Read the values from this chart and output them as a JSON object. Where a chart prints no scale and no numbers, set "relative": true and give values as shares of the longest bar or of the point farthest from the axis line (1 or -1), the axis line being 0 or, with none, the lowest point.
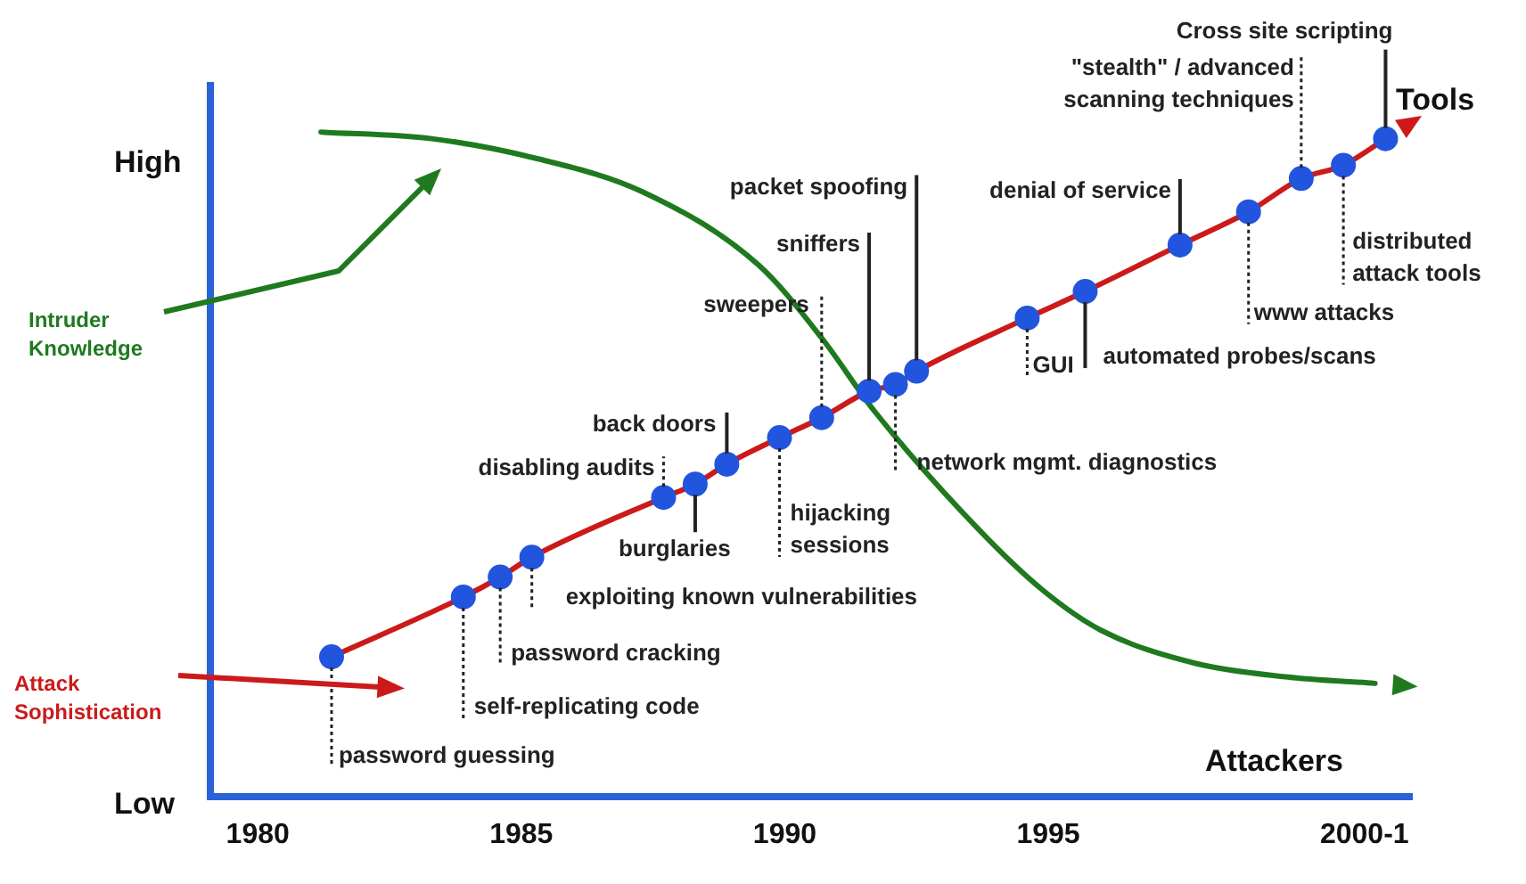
{
  "chart_data": {
    "type": "line",
    "relative": true,
    "legend": false,
    "grid": false,
    "line_style": "solid",
    "xlim": [
      1979.1,
      2001.9
    ],
    "xticks": [
      1980,
      1985,
      1990,
      1995,
      {
        "value": 2001,
        "label": "2000-1"
      }
    ],
    "series": [
      {
        "name": "Attack Sophistication",
        "color": "#cc1a1a",
        "marker": "circle",
        "colors": [
          "#2255dd",
          "#2255dd",
          "#2255dd",
          "#2255dd",
          "#2255dd",
          "#2255dd",
          "#2255dd",
          "#2255dd",
          "#2255dd",
          "#2255dd",
          "#2255dd",
          "#2255dd",
          "#2255dd",
          "#2255dd",
          "#2255dd",
          "#2255dd",
          "#2255dd",
          "#2255dd",
          "#2255dd"
        ],
        "x": [
          1981.4,
          1983.9,
          1984.6,
          1985.2,
          1987.7,
          1988.3,
          1988.9,
          1989.9,
          1990.7,
          1991.6,
          1992.1,
          1992.5,
          1994.6,
          1995.7,
          1997.5,
          1998.8,
          1999.8,
          2000.6,
          2001.4
        ],
        "values": [
          0.21,
          0.3,
          0.33,
          0.36,
          0.45,
          0.47,
          0.5,
          0.54,
          0.57,
          0.61,
          0.62,
          0.64,
          0.72,
          0.76,
          0.83,
          0.88,
          0.93,
          0.95,
          0.99
        ]
      },
      {
        "name": "Intruder Knowledge",
        "color": "#1f7a1f",
        "marker": "none",
        "x": [
          1981.2,
          1983.3,
          1985.3,
          1987.3,
          1989.5,
          1990.7,
          1991.7,
          1993.7,
          1994.9,
          1996.0,
          1997.8,
          1999.5,
          2001.2
        ],
        "values": [
          1.0,
          0.99,
          0.96,
          0.91,
          0.8,
          0.69,
          0.58,
          0.4,
          0.31,
          0.25,
          0.2,
          0.18,
          0.17
        ]
      }
    ],
    "annotations": [
      {
        "text": "password guessing",
        "x": 1981.4,
        "y": 0.21
      },
      {
        "text": "self-replicating code",
        "x": 1983.9,
        "y": 0.3
      },
      {
        "text": "password cracking",
        "x": 1984.6,
        "y": 0.33
      },
      {
        "text": "exploiting known vulnerabilities",
        "x": 1985.2,
        "y": 0.36
      },
      {
        "text": "disabling audits",
        "x": 1987.7,
        "y": 0.45
      },
      {
        "text": "burglaries",
        "x": 1988.3,
        "y": 0.47
      },
      {
        "text": "back doors",
        "x": 1988.9,
        "y": 0.5
      },
      {
        "text": "hijacking\nsessions",
        "x": 1989.9,
        "y": 0.54
      },
      {
        "text": "sweepers",
        "x": 1990.7,
        "y": 0.57
      },
      {
        "text": "sniffers",
        "x": 1991.6,
        "y": 0.61
      },
      {
        "text": "network mgmt. diagnostics",
        "x": 1992.1,
        "y": 0.62
      },
      {
        "text": "packet spoofing",
        "x": 1992.5,
        "y": 0.64
      },
      {
        "text": "GUI",
        "x": 1994.6,
        "y": 0.72
      },
      {
        "text": "automated probes/scans",
        "x": 1995.7,
        "y": 0.76
      },
      {
        "text": "denial of service",
        "x": 1997.5,
        "y": 0.83
      },
      {
        "text": "www attacks",
        "x": 1998.8,
        "y": 0.88
      },
      {
        "text": "\"stealth\" / advanced\nscanning techniques",
        "x": 1999.8,
        "y": 0.93
      },
      {
        "text": "distributed\nattack tools",
        "x": 2000.6,
        "y": 0.95
      },
      {
        "text": "Cross site scripting",
        "x": 2001.4,
        "y": 0.99
      },
      "Tools",
      "Attackers",
      "High",
      "Low"
    ]
  }
}
